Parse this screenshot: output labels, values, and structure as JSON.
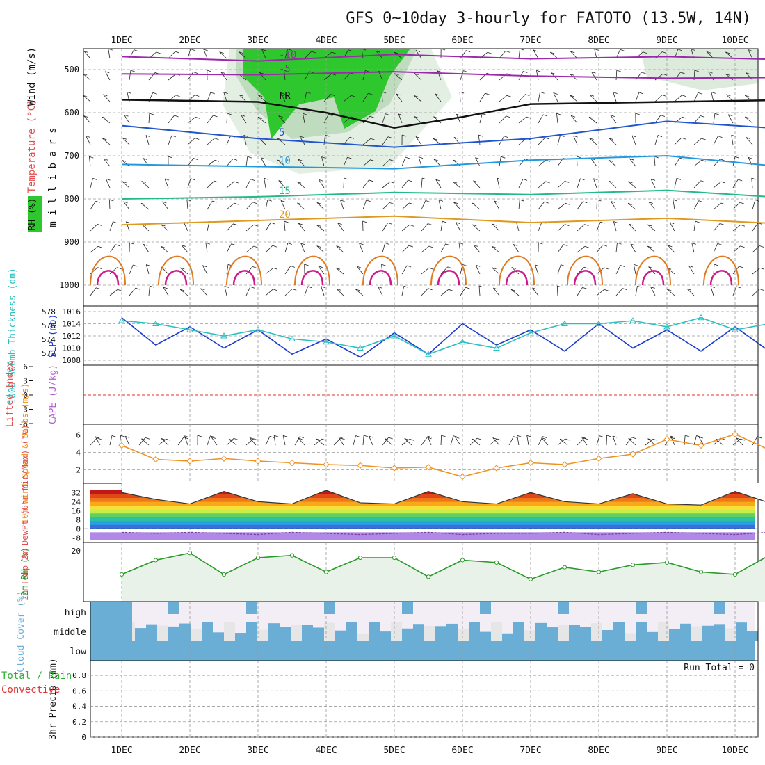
{
  "title": "GFS 0~10day 3-hourly for FATOTO (13.5W, 14N)",
  "dates": [
    "1DEC",
    "2DEC",
    "3DEC",
    "4DEC",
    "5DEC",
    "6DEC",
    "7DEC",
    "8DEC",
    "9DEC",
    "10DEC"
  ],
  "colors": {
    "rh_green": "#2ec82e",
    "slp_line": "#1a3ccc",
    "thickness_line": "#2bbfbf",
    "lifted_zero": "#e03030",
    "wind_line": "#f09020",
    "rh2m_line": "#2a9a2a",
    "cloud_blue": "#6aaed6",
    "grid": "#9a9a9a"
  },
  "chart_data": [
    {
      "type": "line",
      "panel": "upper-air",
      "ylabel_wind": "Wind (m/s)",
      "ylabel_temp": "Temperature (°C)",
      "ylabel_rh": "RH (%)",
      "ylabel_p": "m i l l i b a r s",
      "yticks": [
        500,
        600,
        700,
        800,
        900,
        1000
      ],
      "contour_labels": [
        {
          "text": "-10"
        },
        {
          "text": "-10"
        },
        {
          "text": "-5"
        },
        {
          "text": "-5"
        },
        {
          "text": "FR"
        },
        {
          "text": "FR"
        },
        {
          "text": "FR"
        },
        {
          "text": "5"
        },
        {
          "text": "5"
        },
        {
          "text": "10"
        },
        {
          "text": "10"
        },
        {
          "text": "15"
        },
        {
          "text": "15"
        },
        {
          "text": "20"
        },
        {
          "text": "20"
        }
      ],
      "series": [
        {
          "name": "-10",
          "x_days": [
            0,
            2,
            4,
            6,
            8,
            10
          ],
          "p_mb": [
            470,
            480,
            465,
            475,
            470,
            478
          ]
        },
        {
          "name": "-5",
          "x_days": [
            0,
            2,
            4,
            6,
            8,
            10
          ],
          "p_mb": [
            510,
            512,
            505,
            515,
            520,
            518
          ]
        },
        {
          "name": "FR",
          "x_days": [
            0,
            2,
            3,
            4,
            5,
            6,
            8,
            10
          ],
          "p_mb": [
            570,
            575,
            600,
            635,
            610,
            580,
            575,
            570
          ]
        },
        {
          "name": "5",
          "x_days": [
            0,
            2,
            4,
            6,
            8,
            10
          ],
          "p_mb": [
            630,
            660,
            680,
            660,
            620,
            640
          ]
        },
        {
          "name": "10",
          "x_days": [
            0,
            2,
            4,
            6,
            8,
            10
          ],
          "p_mb": [
            720,
            725,
            730,
            710,
            700,
            730
          ]
        },
        {
          "name": "15",
          "x_days": [
            0,
            2,
            4,
            6,
            8,
            10
          ],
          "p_mb": [
            800,
            795,
            785,
            790,
            780,
            800
          ]
        },
        {
          "name": "20",
          "x_days": [
            0,
            2,
            4,
            6,
            8,
            10
          ],
          "p_mb": [
            860,
            850,
            840,
            855,
            845,
            860
          ]
        }
      ]
    },
    {
      "type": "line",
      "panel": "slp-thickness",
      "ylabel_left": "1000-500mb Thickness (dm)",
      "ylabel_right": "SLP (mb)",
      "thick_ticks": [
        578,
        576,
        574,
        572
      ],
      "slp_ticks": [
        1016,
        1014,
        1012,
        1010,
        1008
      ],
      "x_days": [
        0,
        0.5,
        1,
        1.5,
        2,
        2.5,
        3,
        3.5,
        4,
        4.5,
        5,
        5.5,
        6,
        6.5,
        7,
        7.5,
        8,
        8.5,
        9,
        9.5,
        10
      ],
      "series": [
        {
          "name": "SLP",
          "values": [
            1015,
            1010.5,
            1013.5,
            1010,
            1013,
            1009,
            1011.5,
            1008.5,
            1012.5,
            1009,
            1014,
            1010.5,
            1013,
            1009.5,
            1014,
            1010,
            1013,
            1009.5,
            1013.5,
            1009.5,
            1013
          ]
        },
        {
          "name": "Thickness",
          "values": [
            576.5,
            576,
            575,
            574,
            575,
            573.5,
            573,
            572,
            574,
            571,
            573,
            572,
            574.5,
            576,
            576,
            576.5,
            575.5,
            577,
            575,
            576,
            574
          ]
        }
      ]
    },
    {
      "type": "line",
      "panel": "cape-li",
      "ylabel_left": "Lifted Index",
      "ylabel_right": "CAPE (J/kg)",
      "yticks": [
        -6,
        -3,
        0,
        3,
        6
      ],
      "yticklabels": [
        "6",
        "3",
        "0",
        "-3",
        "-6"
      ]
    },
    {
      "type": "line",
      "panel": "wind10m",
      "ylabel": "10m Wind Speed & Barbs (m/s)",
      "yticks": [
        2,
        4,
        6
      ],
      "x_days": [
        0,
        0.5,
        1,
        1.5,
        2,
        2.5,
        3,
        3.5,
        4,
        4.5,
        5,
        5.5,
        6,
        6.5,
        7,
        7.5,
        8,
        8.5,
        9,
        9.5,
        10
      ],
      "series": [
        {
          "name": "speed",
          "values": [
            4.8,
            3.2,
            3,
            3.3,
            3,
            2.8,
            2.6,
            2.5,
            2.2,
            2.3,
            1.2,
            2.2,
            2.8,
            2.6,
            3.3,
            3.8,
            5.5,
            4.8,
            6.1,
            4.3,
            3.6
          ]
        }
      ]
    },
    {
      "type": "area",
      "panel": "temp2m",
      "ylabel": "2m Temp 2m DewPt (6hr Min/Max) (°C)",
      "yticks": [
        32,
        24,
        16,
        8,
        0,
        -8
      ],
      "x_days": [
        0,
        0.5,
        1,
        1.5,
        2,
        2.5,
        3,
        3.5,
        4,
        4.5,
        5,
        5.5,
        6,
        6.5,
        7,
        7.5,
        8,
        8.5,
        9,
        9.5,
        10
      ],
      "series": [
        {
          "name": "temp",
          "values": [
            32,
            26,
            22,
            33,
            24,
            22,
            34,
            23,
            22,
            33,
            24,
            22,
            32,
            24,
            22,
            31,
            22,
            21,
            33,
            23,
            22
          ]
        },
        {
          "name": "dewpt",
          "values": [
            -3,
            -4,
            -3,
            -4,
            -5,
            -3,
            -4,
            -5,
            -4,
            -3,
            -5,
            -4,
            -4,
            -3,
            -5,
            -4,
            -3,
            -4,
            -5,
            -3,
            -4
          ]
        }
      ]
    },
    {
      "type": "line",
      "panel": "rh2m",
      "ylabel": "2m RH (%)",
      "yticks": [
        20
      ],
      "x_days": [
        0,
        0.5,
        1,
        1.5,
        2,
        2.5,
        3,
        3.5,
        4,
        4.5,
        5,
        5.5,
        6,
        6.5,
        7,
        7.5,
        8,
        8.5,
        9,
        9.5,
        10
      ],
      "series": [
        {
          "name": "rh",
          "values": [
            10,
            16,
            19,
            10,
            17,
            18,
            11,
            17,
            17,
            9,
            16,
            15,
            8,
            13,
            11,
            14,
            15,
            11,
            10,
            18,
            17
          ]
        }
      ]
    },
    {
      "type": "heatmap",
      "panel": "cloud",
      "ylabel": "Cloud Cover (%)",
      "levels": [
        "high",
        "middle",
        "low"
      ],
      "low_pct": 100,
      "middle_pct": 60,
      "high_pct": 15
    },
    {
      "type": "bar",
      "panel": "precip",
      "ylabel_left": "Total / Rain Convective",
      "ylabel": "3hr Precip (mm)",
      "yticks": [
        0,
        0.2,
        0.4,
        0.6,
        0.8
      ],
      "run_total": "Run Total = 0"
    }
  ]
}
